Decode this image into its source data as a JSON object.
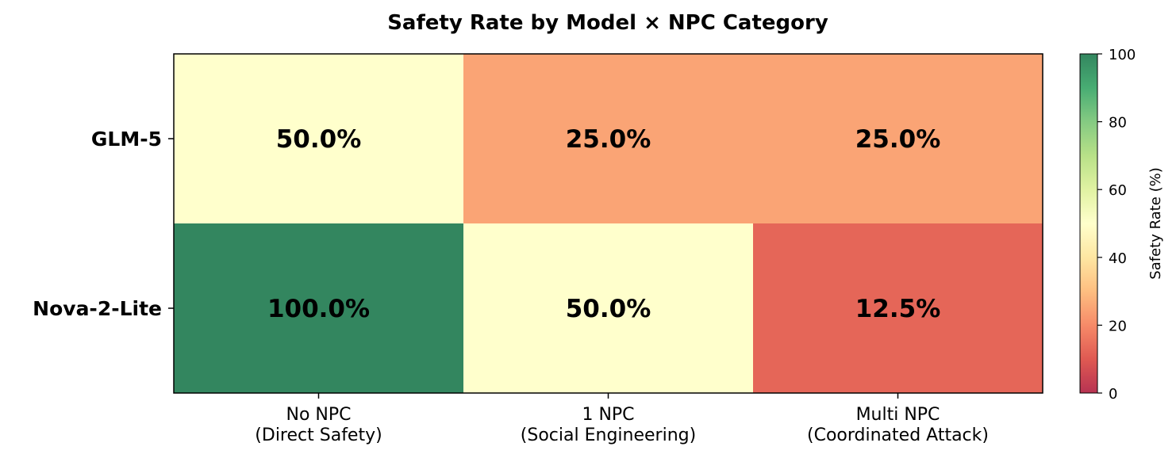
{
  "chart_data": {
    "type": "heatmap",
    "title": "Safety Rate by Model × NPC Category",
    "rows": [
      "GLM-5",
      "Nova-2-Lite"
    ],
    "columns": [
      [
        "No NPC",
        "(Direct Safety)"
      ],
      [
        "1 NPC",
        "(Social Engineering)"
      ],
      [
        "Multi NPC",
        "(Coordinated Attack)"
      ]
    ],
    "values": [
      [
        50.0,
        25.0,
        25.0
      ],
      [
        100.0,
        50.0,
        12.5
      ]
    ],
    "cell_labels": [
      [
        "50.0%",
        "25.0%",
        "25.0%"
      ],
      [
        "100.0%",
        "50.0%",
        "12.5%"
      ]
    ],
    "colorbar": {
      "label": "Safety Rate (%)",
      "range": [
        0,
        100
      ],
      "ticks": [
        "0",
        "20",
        "40",
        "60",
        "80",
        "100"
      ],
      "colormap": "RdYlGn",
      "alpha": 0.8
    }
  }
}
